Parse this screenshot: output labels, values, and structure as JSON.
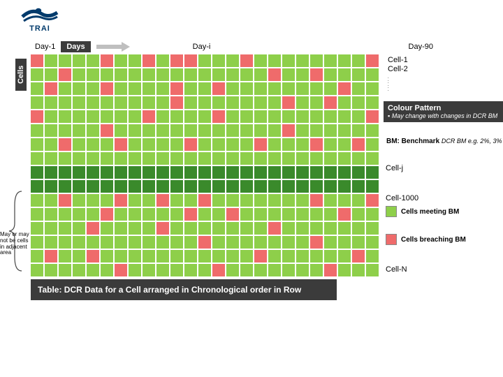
{
  "logo": {
    "text": "TRAI",
    "color": "#003a6b"
  },
  "header": {
    "day1": "Day-1",
    "daysbox": "Days",
    "dayi": "Day-i",
    "day90": "Day-90"
  },
  "axis": {
    "cells": "Cells"
  },
  "rightLabels": {
    "cell1": "Cell-1",
    "cell2": "Cell-2",
    "cellj": "Cell-j",
    "cell1000": "Cell-1000",
    "celln": "Cell-N"
  },
  "colourPattern": {
    "title": "Colour Pattern",
    "body": "▪  May change with changes in DCR BM"
  },
  "bm": {
    "label": "BM: Benchmark",
    "eg": "DCR BM e.g. 2%, 3%"
  },
  "legend": {
    "meet": "Cells meeting BM",
    "breach": "Cells breaching BM"
  },
  "braceNote": "May or may not be cells in adjacent area",
  "caption": "Table: DCR Data for a Cell arranged in Chronological order in Row",
  "colors": {
    "green": "#8ecf4a",
    "darkgreen": "#3a8a2b",
    "red": "#ef6b6b",
    "boxbg": "#3b3b3b",
    "arrow": "#bfbfbf"
  },
  "grid": {
    "cols": 25,
    "rows": 16,
    "cellSize": 18,
    "gap": 2,
    "rowsData": [
      "RGGGGRGGRGRRGGGRGGGGGGGGR",
      "GGRGGGGGGGGGGGGGGRGGRGGGG",
      "GRGGGRGGGGRGGRGGGGGGGGRGG",
      "GGGGGGGGGGRGGGGGGGRGGRGGG",
      "RGGGGGGGRGGGGRGGGGGGGGGGR",
      "GGGGGRGGGGGGGGGGGGRGGGGGG",
      "GGRGGGRGGGGRGGGGRGGGRGGRG",
      "GGGGGGGGGGGGGGGGGGGGGGGGG",
      "DDDDDDDDDDDDDDDDDDDDDDDDD",
      "DDDDDDDDDDDDDDDDDDDDDDDDD",
      "GGRGGGRGGRGGRGGGGGGGRGGGR",
      "GGGGGRGGGGGRGGRGGGGGGGRGG",
      "GGGGRGGGGRGGGGGGGRGGGGGGG",
      "GGGGGGGGGGGGRGGGGGGGRGGGG",
      "GRGGRGGGGGGGGGGGRGGGGGGRG",
      "GGGGGGRGGGGGGRGGGGGGGRGGG"
    ]
  }
}
